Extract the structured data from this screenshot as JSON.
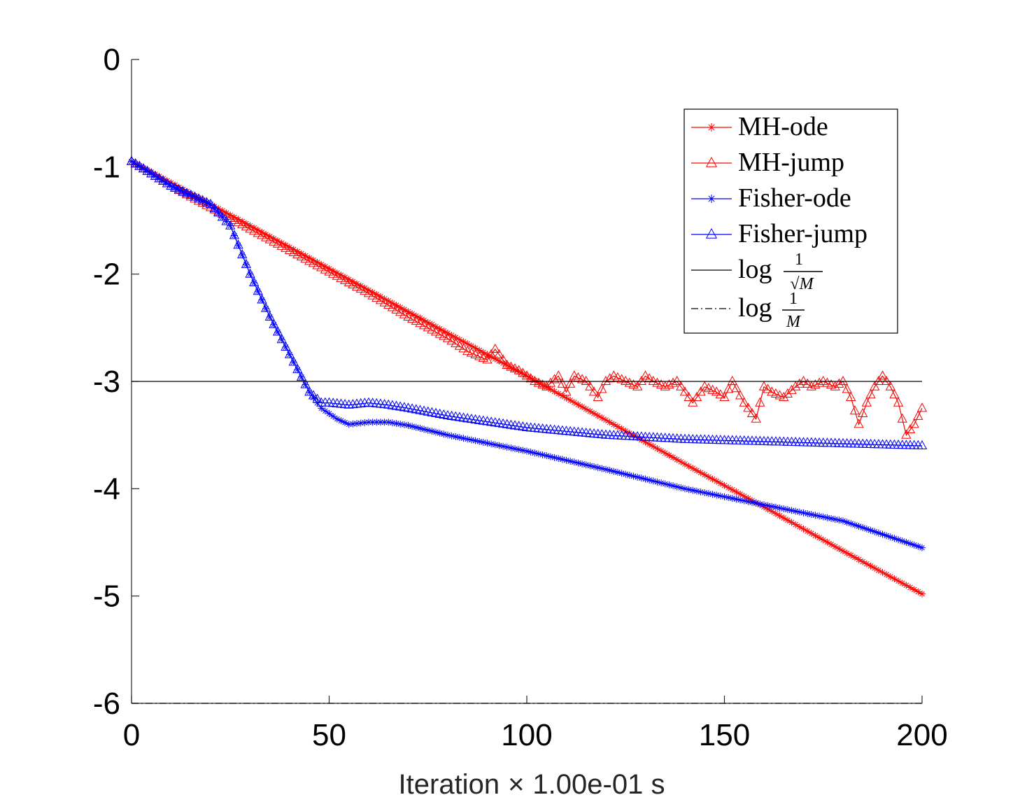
{
  "chart_data": {
    "type": "line",
    "title": "",
    "xlabel": "Iteration",
    "xlabel_times": "×",
    "xlabel_suffix": "1.00e-01 s",
    "ylabel": "",
    "xlim": [
      0,
      200
    ],
    "ylim": [
      -6,
      0
    ],
    "xticks": [
      "0",
      "50",
      "100",
      "150",
      "200"
    ],
    "yticks": [
      "0",
      "-1",
      "-2",
      "-3",
      "-4",
      "-5",
      "-6"
    ],
    "grid": false,
    "legend_position": "top-right",
    "colors": {
      "red": "#ff0000",
      "blue": "#0000ff",
      "black": "#000000"
    },
    "series": [
      {
        "name": "MH-ode",
        "color": "#ff0000",
        "marker": "star",
        "x": [
          0,
          20,
          40,
          60,
          80,
          100,
          120,
          140,
          160,
          180,
          200
        ],
        "y": [
          -0.95,
          -1.35,
          -1.75,
          -2.15,
          -2.55,
          -2.95,
          -3.36,
          -3.77,
          -4.17,
          -4.58,
          -4.98
        ]
      },
      {
        "name": "MH-jump",
        "color": "#ff0000",
        "marker": "triangle",
        "x": [
          0,
          10,
          20,
          30,
          40,
          50,
          60,
          70,
          80,
          85,
          90,
          92,
          95,
          98,
          100,
          102,
          105,
          108,
          110,
          112,
          115,
          118,
          120,
          122,
          125,
          128,
          130,
          132,
          135,
          138,
          140,
          142,
          145,
          148,
          150,
          152,
          155,
          158,
          160,
          162,
          165,
          168,
          170,
          172,
          175,
          178,
          180,
          182,
          184,
          186,
          188,
          190,
          192,
          194,
          196,
          198,
          200
        ],
        "y": [
          -0.95,
          -1.18,
          -1.38,
          -1.58,
          -1.78,
          -1.98,
          -2.18,
          -2.4,
          -2.6,
          -2.72,
          -2.8,
          -2.7,
          -2.85,
          -2.9,
          -2.95,
          -3.0,
          -3.05,
          -2.95,
          -3.1,
          -2.95,
          -3.0,
          -3.15,
          -3.0,
          -2.95,
          -3.0,
          -3.05,
          -2.95,
          -3.0,
          -3.05,
          -3.0,
          -3.1,
          -3.2,
          -3.05,
          -3.1,
          -3.15,
          -3.0,
          -3.2,
          -3.35,
          -3.05,
          -3.1,
          -3.15,
          -3.05,
          -3.0,
          -3.05,
          -3.0,
          -3.05,
          -3.0,
          -3.15,
          -3.4,
          -3.2,
          -3.05,
          -2.95,
          -3.05,
          -3.2,
          -3.5,
          -3.4,
          -3.25
        ]
      },
      {
        "name": "Fisher-ode",
        "color": "#0000ff",
        "marker": "star",
        "x": [
          0,
          10,
          20,
          25,
          30,
          35,
          40,
          45,
          48,
          52,
          55,
          60,
          65,
          70,
          80,
          100,
          120,
          140,
          160,
          180,
          200
        ],
        "y": [
          -0.95,
          -1.18,
          -1.35,
          -1.55,
          -2.0,
          -2.4,
          -2.75,
          -3.1,
          -3.25,
          -3.35,
          -3.4,
          -3.38,
          -3.38,
          -3.41,
          -3.5,
          -3.65,
          -3.82,
          -4.0,
          -4.15,
          -4.3,
          -4.55
        ]
      },
      {
        "name": "Fisher-jump",
        "color": "#0000ff",
        "marker": "triangle",
        "x": [
          0,
          10,
          20,
          25,
          30,
          35,
          40,
          45,
          48,
          50,
          55,
          60,
          65,
          70,
          80,
          100,
          120,
          140,
          160,
          180,
          200
        ],
        "y": [
          -0.95,
          -1.18,
          -1.35,
          -1.55,
          -2.0,
          -2.4,
          -2.75,
          -3.1,
          -3.2,
          -3.2,
          -3.22,
          -3.2,
          -3.22,
          -3.25,
          -3.32,
          -3.43,
          -3.5,
          -3.54,
          -3.56,
          -3.58,
          -3.6
        ]
      },
      {
        "name": "log 1/√M",
        "color": "#000000",
        "marker": "none",
        "line": "solid",
        "x": [
          0,
          200
        ],
        "y": [
          -3.0,
          -3.0
        ]
      },
      {
        "name": "log 1/M",
        "color": "#000000",
        "marker": "none",
        "line": "dashdot",
        "x": [
          0,
          200
        ],
        "y": [
          -6.0,
          -6.0
        ]
      }
    ],
    "legend": {
      "entries": [
        "MH-ode",
        "MH-jump",
        "Fisher-ode",
        "Fisher-jump"
      ],
      "math_word": "log",
      "frac_numerator": "1",
      "frac_den_sqrt": "√M",
      "frac_den_plain": "M"
    }
  }
}
